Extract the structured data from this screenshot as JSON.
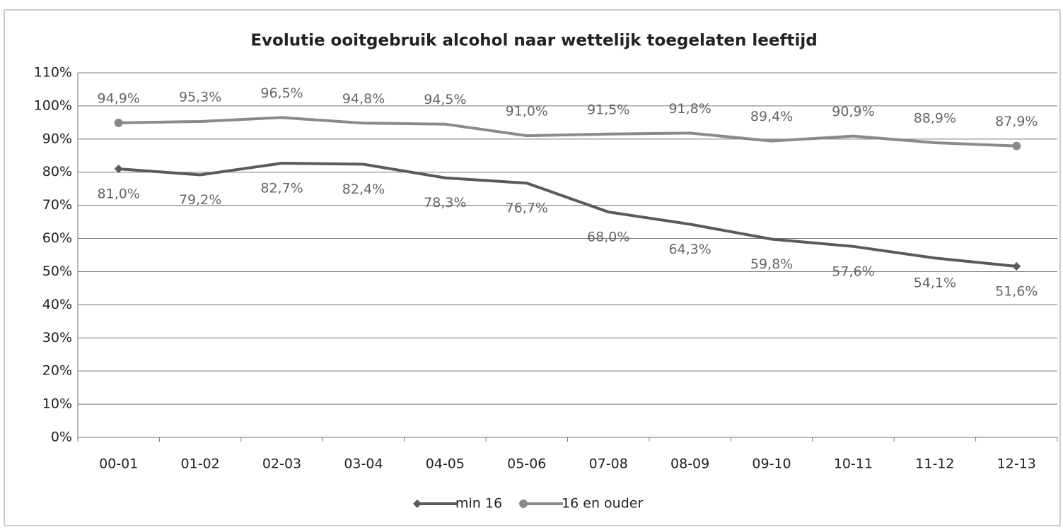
{
  "chart_data": {
    "type": "line",
    "title": "Evolutie ooitgebruik alcohol naar wettelijk toegelaten leeftijd",
    "categories": [
      "00-01",
      "01-02",
      "02-03",
      "03-04",
      "04-05",
      "05-06",
      "07-08",
      "08-09",
      "09-10",
      "10-11",
      "11-12",
      "12-13"
    ],
    "series": [
      {
        "name": "min 16",
        "color": "#5a5a5a",
        "marker": "diamond",
        "values": [
          81.0,
          79.2,
          82.7,
          82.4,
          78.3,
          76.7,
          68.0,
          64.3,
          59.8,
          57.6,
          54.1,
          51.6
        ],
        "value_labels": [
          "81,0%",
          "79,2%",
          "82,7%",
          "82,4%",
          "78,3%",
          "76,7%",
          "68,0%",
          "64,3%",
          "59,8%",
          "57,6%",
          "54,1%",
          "51,6%"
        ]
      },
      {
        "name": "16 en ouder",
        "color": "#8a8a8a",
        "marker": "circle",
        "values": [
          94.9,
          95.3,
          96.5,
          94.8,
          94.5,
          91.0,
          91.5,
          91.8,
          89.4,
          90.9,
          88.9,
          87.9
        ],
        "value_labels": [
          "94,9%",
          "95,3%",
          "96,5%",
          "94,8%",
          "94,5%",
          "91,0%",
          "91,5%",
          "91,8%",
          "89,4%",
          "90,9%",
          "88,9%",
          "87,9%"
        ]
      }
    ],
    "ylim": [
      0,
      110
    ],
    "yticks": [
      {
        "value": 0,
        "label": "0%"
      },
      {
        "value": 10,
        "label": "10%"
      },
      {
        "value": 20,
        "label": "20%"
      },
      {
        "value": 30,
        "label": "30%"
      },
      {
        "value": 40,
        "label": "40%"
      },
      {
        "value": 50,
        "label": "50%"
      },
      {
        "value": 60,
        "label": "60%"
      },
      {
        "value": 70,
        "label": "70%"
      },
      {
        "value": 80,
        "label": "80%"
      },
      {
        "value": 90,
        "label": "90%"
      },
      {
        "value": 100,
        "label": "100%"
      },
      {
        "value": 110,
        "label": "110%"
      }
    ],
    "grid": true,
    "legend": "bottom"
  }
}
